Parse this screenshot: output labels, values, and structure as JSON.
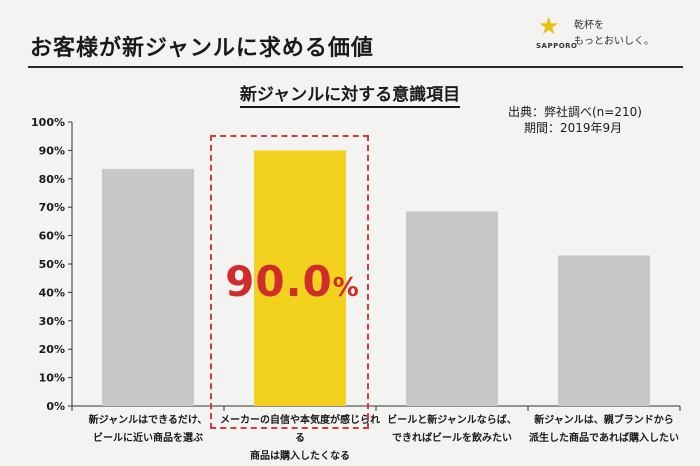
{
  "header": {
    "title": "お客様が新ジャンルに求める価値",
    "logo": {
      "icon": "star-icon",
      "brand": "SAPPORO",
      "tagline_line1": "乾杯を",
      "tagline_line2": "もっとおいしく。"
    }
  },
  "chart_data": {
    "type": "bar",
    "title": "新ジャンルに対する意識項目",
    "categories": [
      [
        "新ジャンルはできるだけ、",
        "ビールに近い商品を選ぶ"
      ],
      [
        "メーカーの自信や本気度が感じられる",
        "商品は購入したくなる"
      ],
      [
        "ビールと新ジャンルならば、",
        "できればビールを飲みたい"
      ],
      [
        "新ジャンルは、親ブランドから",
        "派生した商品であれば購入したい"
      ]
    ],
    "values": [
      83.5,
      90.0,
      68.5,
      53.0
    ],
    "highlight_index": 1,
    "highlight_value_label": {
      "number": "90.0",
      "unit": "%"
    },
    "ylim": [
      0,
      100
    ],
    "yticks": [
      "0%",
      "10%",
      "20%",
      "30%",
      "40%",
      "50%",
      "60%",
      "70%",
      "80%",
      "90%",
      "100%"
    ],
    "grid": false,
    "colors": {
      "bar": "#c9c8c6",
      "highlight": "#f2d21f",
      "highlight_box": "#d33a3a",
      "highlight_text": "#d12c2c"
    }
  },
  "source": {
    "line1": "出典：弊社調べ(n=210)",
    "line2": "期間：2019年9月"
  }
}
